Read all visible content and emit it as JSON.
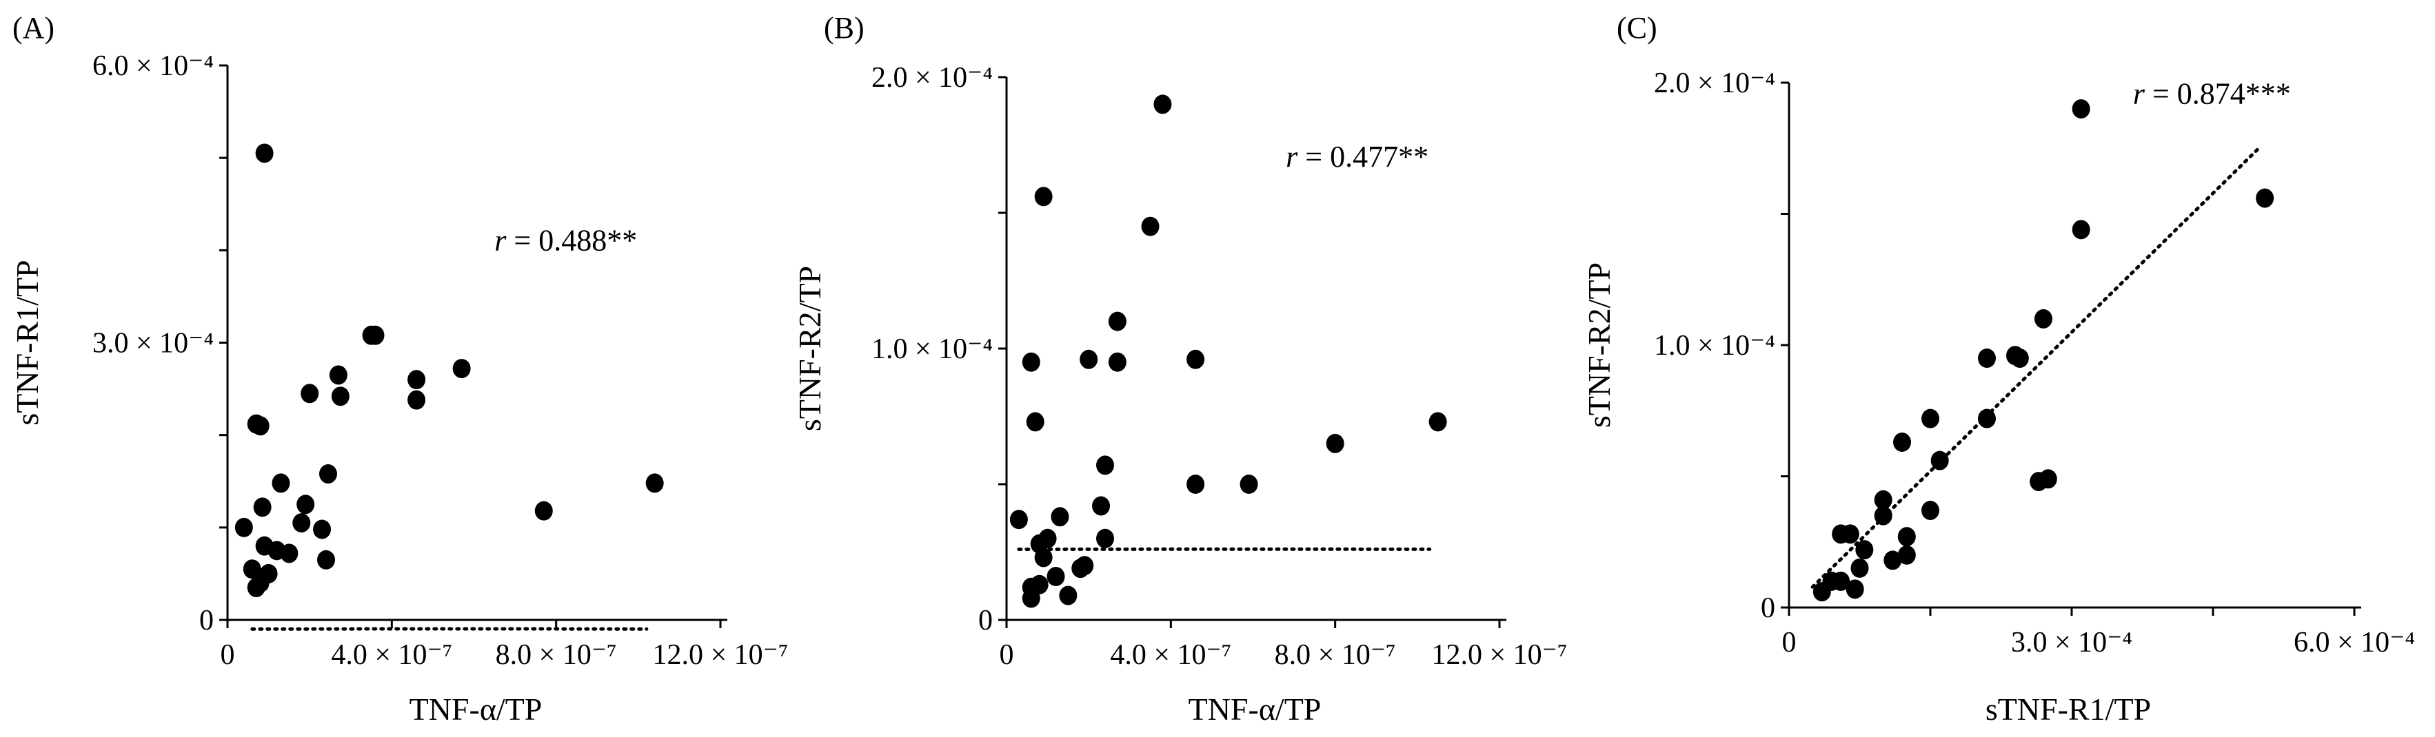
{
  "chart_data": [
    {
      "type": "scatter",
      "panel_label": "(A)",
      "xlabel": "TNF-α/TP",
      "ylabel": "sTNF-R1/TP",
      "xlim": [
        0,
        1.2e-06
      ],
      "ylim": [
        0,
        0.0006
      ],
      "x_ticks": [
        {
          "value": 0,
          "label": "0"
        },
        {
          "value": 4e-07,
          "label": "4.0 × 10⁻⁷"
        },
        {
          "value": 8e-07,
          "label": "8.0 × 10⁻⁷"
        },
        {
          "value": 1.2e-06,
          "label": "12.0 × 10⁻⁷"
        }
      ],
      "y_ticks": [
        {
          "value": 0,
          "label": "0"
        },
        {
          "value": 0.0003,
          "label": "3.0 × 10⁻⁴"
        },
        {
          "value": 0.0006,
          "label": "6.0 × 10⁻⁴"
        }
      ],
      "y_minor_ticks": [
        0.0001,
        0.0002,
        0.0004,
        0.0005
      ],
      "annotation": {
        "r_symbol": "r",
        "text": " = 0.488**",
        "x": 6.5e-07,
        "y": 0.0004
      },
      "trendline": {
        "type": "quadratic",
        "x_range": [
          6e-08,
          1.02e-06
        ],
        "coef": [
          -1045000.0,
          1.187,
          -1e-05,
          0
        ]
      },
      "points": [
        {
          "x": 9e-08,
          "y": 0.000505
        },
        {
          "x": 7e-08,
          "y": 0.000212
        },
        {
          "x": 8e-08,
          "y": 0.00021
        },
        {
          "x": 4e-08,
          "y": 0.0001
        },
        {
          "x": 6e-08,
          "y": 5.5e-05
        },
        {
          "x": 7e-08,
          "y": 3.5e-05
        },
        {
          "x": 8e-08,
          "y": 4e-05
        },
        {
          "x": 8.5e-08,
          "y": 0.000122
        },
        {
          "x": 9e-08,
          "y": 8e-05
        },
        {
          "x": 1e-07,
          "y": 5e-05
        },
        {
          "x": 1.2e-07,
          "y": 7.5e-05
        },
        {
          "x": 1.3e-07,
          "y": 0.000148
        },
        {
          "x": 1.5e-07,
          "y": 7.2e-05
        },
        {
          "x": 1.8e-07,
          "y": 0.000105
        },
        {
          "x": 1.9e-07,
          "y": 0.000125
        },
        {
          "x": 2e-07,
          "y": 0.000245
        },
        {
          "x": 2.3e-07,
          "y": 9.8e-05
        },
        {
          "x": 2.4e-07,
          "y": 6.5e-05
        },
        {
          "x": 2.45e-07,
          "y": 0.000158
        },
        {
          "x": 2.7e-07,
          "y": 0.000265
        },
        {
          "x": 2.75e-07,
          "y": 0.000242
        },
        {
          "x": 3.5e-07,
          "y": 0.000308
        },
        {
          "x": 3.6e-07,
          "y": 0.000308
        },
        {
          "x": 4.6e-07,
          "y": 0.00026
        },
        {
          "x": 4.6e-07,
          "y": 0.000238
        },
        {
          "x": 5.7e-07,
          "y": 0.000272
        },
        {
          "x": 7.7e-07,
          "y": 0.000118
        },
        {
          "x": 1.04e-06,
          "y": 0.000148
        }
      ]
    },
    {
      "type": "scatter",
      "panel_label": "(B)",
      "xlabel": "TNF-α/TP",
      "ylabel": "sTNF-R2/TP",
      "xlim": [
        0,
        1.2e-06
      ],
      "ylim": [
        0,
        0.0002
      ],
      "x_ticks": [
        {
          "value": 0,
          "label": "0"
        },
        {
          "value": 4e-07,
          "label": "4.0 × 10⁻⁷"
        },
        {
          "value": 8e-07,
          "label": "8.0 × 10⁻⁷"
        },
        {
          "value": 1.2e-06,
          "label": "12.0 × 10⁻⁷"
        }
      ],
      "y_ticks": [
        {
          "value": 0,
          "label": "0"
        },
        {
          "value": 0.0001,
          "label": "1.0 × 10⁻⁴"
        },
        {
          "value": 0.0002,
          "label": "2.0 × 10⁻⁴"
        }
      ],
      "y_minor_ticks": [
        5e-05,
        0.00015
      ],
      "annotation": {
        "r_symbol": "r",
        "text": " = 0.477**",
        "x": 6.8e-07,
        "y": 0.000167
      },
      "trendline": {
        "type": "quadratic",
        "x_range": [
          3e-08,
          1.03e-06
        ],
        "coef": [
          -187000,
          0.2236,
          2.6e-05,
          0
        ]
      },
      "points": [
        {
          "x": 3.8e-07,
          "y": 0.00019
        },
        {
          "x": 9e-08,
          "y": 0.000156
        },
        {
          "x": 3.5e-07,
          "y": 0.000145
        },
        {
          "x": 2.7e-07,
          "y": 0.00011
        },
        {
          "x": 6e-08,
          "y": 9.5e-05
        },
        {
          "x": 2e-07,
          "y": 9.6e-05
        },
        {
          "x": 2.7e-07,
          "y": 9.5e-05
        },
        {
          "x": 4.6e-07,
          "y": 9.6e-05
        },
        {
          "x": 7e-08,
          "y": 7.3e-05
        },
        {
          "x": 1.05e-06,
          "y": 7.3e-05
        },
        {
          "x": 8e-07,
          "y": 6.5e-05
        },
        {
          "x": 2.4e-07,
          "y": 5.7e-05
        },
        {
          "x": 4.6e-07,
          "y": 5e-05
        },
        {
          "x": 5.9e-07,
          "y": 5e-05
        },
        {
          "x": 2.3e-07,
          "y": 4.2e-05
        },
        {
          "x": 3e-08,
          "y": 3.7e-05
        },
        {
          "x": 1.3e-07,
          "y": 3.8e-05
        },
        {
          "x": 8e-08,
          "y": 2.8e-05
        },
        {
          "x": 1e-07,
          "y": 3e-05
        },
        {
          "x": 2.4e-07,
          "y": 3e-05
        },
        {
          "x": 9e-08,
          "y": 2.3e-05
        },
        {
          "x": 1.2e-07,
          "y": 1.6e-05
        },
        {
          "x": 1.9e-07,
          "y": 2e-05
        },
        {
          "x": 1.8e-07,
          "y": 1.9e-05
        },
        {
          "x": 6e-08,
          "y": 1.2e-05
        },
        {
          "x": 8e-08,
          "y": 1.3e-05
        },
        {
          "x": 1.5e-07,
          "y": 9e-06
        },
        {
          "x": 6e-08,
          "y": 8e-06
        }
      ]
    },
    {
      "type": "scatter",
      "panel_label": "(C)",
      "xlabel": "sTNF-R1/TP",
      "ylabel": "sTNF-R2/TP",
      "xlim": [
        0,
        0.0006
      ],
      "ylim": [
        0,
        0.0002
      ],
      "x_ticks": [
        {
          "value": 0,
          "label": "0"
        },
        {
          "value": 0.0003,
          "label": "3.0 × 10⁻⁴"
        },
        {
          "value": 0.0006,
          "label": "6.0 × 10⁻⁴"
        }
      ],
      "y_ticks": [
        {
          "value": 0,
          "label": "0"
        },
        {
          "value": 0.0001,
          "label": "1.0 × 10⁻⁴"
        },
        {
          "value": 0.0002,
          "label": "2.0 × 10⁻⁴"
        }
      ],
      "y_minor_ticks": [
        5e-05,
        0.00015
      ],
      "x_minor_ticks": [
        0.00015,
        0.00045
      ],
      "annotation": {
        "r_symbol": "r",
        "text": " = 0.874***",
        "x": 0.000365,
        "y": 0.000192
      },
      "trendline": {
        "type": "linear",
        "x_range": [
          2.5e-05,
          0.0005
        ],
        "coef": [
          0.353,
          -1e-06
        ]
      },
      "points": [
        {
          "x": 0.00031,
          "y": 0.00019
        },
        {
          "x": 0.000505,
          "y": 0.000156
        },
        {
          "x": 0.00031,
          "y": 0.000144
        },
        {
          "x": 0.00027,
          "y": 0.00011
        },
        {
          "x": 0.00021,
          "y": 9.5e-05
        },
        {
          "x": 0.00024,
          "y": 9.6e-05
        },
        {
          "x": 0.000245,
          "y": 9.5e-05
        },
        {
          "x": 0.00015,
          "y": 7.2e-05
        },
        {
          "x": 0.00021,
          "y": 7.2e-05
        },
        {
          "x": 0.00012,
          "y": 6.3e-05
        },
        {
          "x": 0.00016,
          "y": 5.6e-05
        },
        {
          "x": 0.000265,
          "y": 4.8e-05
        },
        {
          "x": 0.000275,
          "y": 4.9e-05
        },
        {
          "x": 0.0001,
          "y": 4.1e-05
        },
        {
          "x": 0.0001,
          "y": 3.5e-05
        },
        {
          "x": 0.00015,
          "y": 3.7e-05
        },
        {
          "x": 5.5e-05,
          "y": 2.8e-05
        },
        {
          "x": 6.5e-05,
          "y": 2.8e-05
        },
        {
          "x": 0.000125,
          "y": 2.7e-05
        },
        {
          "x": 8e-05,
          "y": 2.2e-05
        },
        {
          "x": 0.00011,
          "y": 1.8e-05
        },
        {
          "x": 0.000125,
          "y": 2e-05
        },
        {
          "x": 7.5e-05,
          "y": 1.5e-05
        },
        {
          "x": 4.5e-05,
          "y": 1e-05
        },
        {
          "x": 5.5e-05,
          "y": 1e-05
        },
        {
          "x": 3.5e-05,
          "y": 6e-06
        },
        {
          "x": 7e-05,
          "y": 7e-06
        }
      ]
    }
  ]
}
